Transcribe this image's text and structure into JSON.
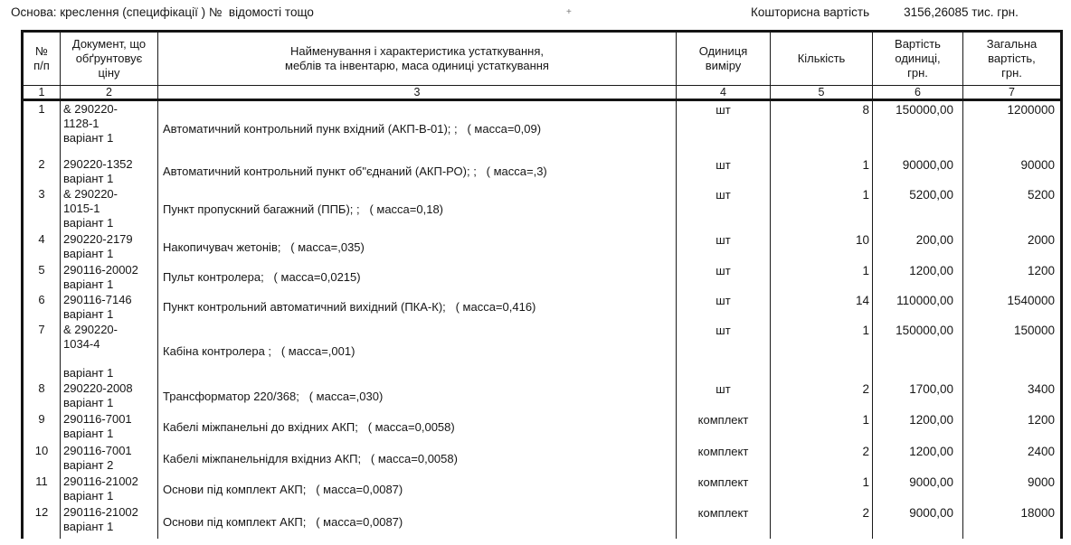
{
  "page": {
    "basis_note": "Основа: креслення (специфікації ) №  відомості тощо",
    "estimate_label": "Кошторисна вартість",
    "estimate_value": "3156,26085 тис. грн.",
    "stray_mark": "+"
  },
  "table": {
    "columns": [
      {
        "index": "1",
        "title": "№\nп/п"
      },
      {
        "index": "2",
        "title": "Документ, що\nобґрунтовує\nціну"
      },
      {
        "index": "3",
        "title": "Найменування і характеристика устаткування,\nмеблів та інвентарю, маса одиниці устаткування"
      },
      {
        "index": "4",
        "title": "Одиниця\nвиміру"
      },
      {
        "index": "5",
        "title": "Кількість"
      },
      {
        "index": "6",
        "title": "Вартість\nодиниці,\nгрн."
      },
      {
        "index": "7",
        "title": "Загальна\nвартість,\nгрн."
      }
    ],
    "rows": [
      {
        "num": "1",
        "doc": "& 290220-\n1128-1\nваріант 1",
        "name": "Автоматичний контрольний пунк вхідний (АКП-В-01); ;   ( масса=0,09)",
        "unit": "шт",
        "qty": "8",
        "unit_cost": "150000,00",
        "total": "1200000"
      },
      {
        "num": "2",
        "doc": "290220-1352\nваріант 1",
        "name": "Автоматичний контрольний пункт об\"єднаний (АКП-РО); ;   ( масса=,3)",
        "unit": "шт",
        "qty": "1",
        "unit_cost": "90000,00",
        "total": "90000"
      },
      {
        "num": "3",
        "doc": "& 290220-\n1015-1\nваріант 1",
        "name": "Пункт пропускний багажний (ППБ); ;   ( масса=0,18)",
        "unit": "шт",
        "qty": "1",
        "unit_cost": "5200,00",
        "total": "5200"
      },
      {
        "num": "4",
        "doc": "290220-2179\nваріант 1",
        "name": "Накопичувач жетонів;   ( масса=,035)",
        "unit": "шт",
        "qty": "10",
        "unit_cost": "200,00",
        "total": "2000"
      },
      {
        "num": "5",
        "doc": "290116-20002\nваріант 1",
        "name": "Пульт контролера;   ( масса=0,0215)",
        "unit": "шт",
        "qty": "1",
        "unit_cost": "1200,00",
        "total": "1200"
      },
      {
        "num": "6",
        "doc": "290116-7146\nваріант 1",
        "name": "Пункт контрольний автоматичний вихідний (ПКА-К);   ( масса=0,416)",
        "unit": "шт",
        "qty": "14",
        "unit_cost": "110000,00",
        "total": "1540000"
      },
      {
        "num": "7",
        "doc": "& 290220-\n1034-4\n\nваріант 1",
        "name": "Кабіна контролера ;   ( масса=,001)",
        "unit": "шт",
        "qty": "1",
        "unit_cost": "150000,00",
        "total": "150000"
      },
      {
        "num": "8",
        "doc": "290220-2008\nваріант 1",
        "name": "Трансформатор 220/368;   ( масса=,030)",
        "unit": "шт",
        "qty": "2",
        "unit_cost": "1700,00",
        "total": "3400"
      },
      {
        "num": "9",
        "doc": "290116-7001\nваріант 1",
        "name": "Кабелі міжпанельні до вхідних АКП;   ( масса=0,0058)",
        "unit": "комплект",
        "qty": "1",
        "unit_cost": "1200,00",
        "total": "1200"
      },
      {
        "num": "10",
        "doc": "290116-7001\nваріант 2",
        "name": "Кабелі міжпанельнідля вхідниз АКП;   ( масса=0,0058)",
        "unit": "комплект",
        "qty": "2",
        "unit_cost": "1200,00",
        "total": "2400"
      },
      {
        "num": "11",
        "doc": "290116-21002\nваріант 1",
        "name": "Основи під комплект АКП;   ( масса=0,0087)",
        "unit": "комплект",
        "qty": "1",
        "unit_cost": "9000,00",
        "total": "9000"
      },
      {
        "num": "12",
        "doc": "290116-21002\nваріант 1",
        "name": "Основи під комплект АКП;   ( масса=0,0087)",
        "unit": "комплект",
        "qty": "2",
        "unit_cost": "9000,00",
        "total": "18000"
      }
    ]
  }
}
